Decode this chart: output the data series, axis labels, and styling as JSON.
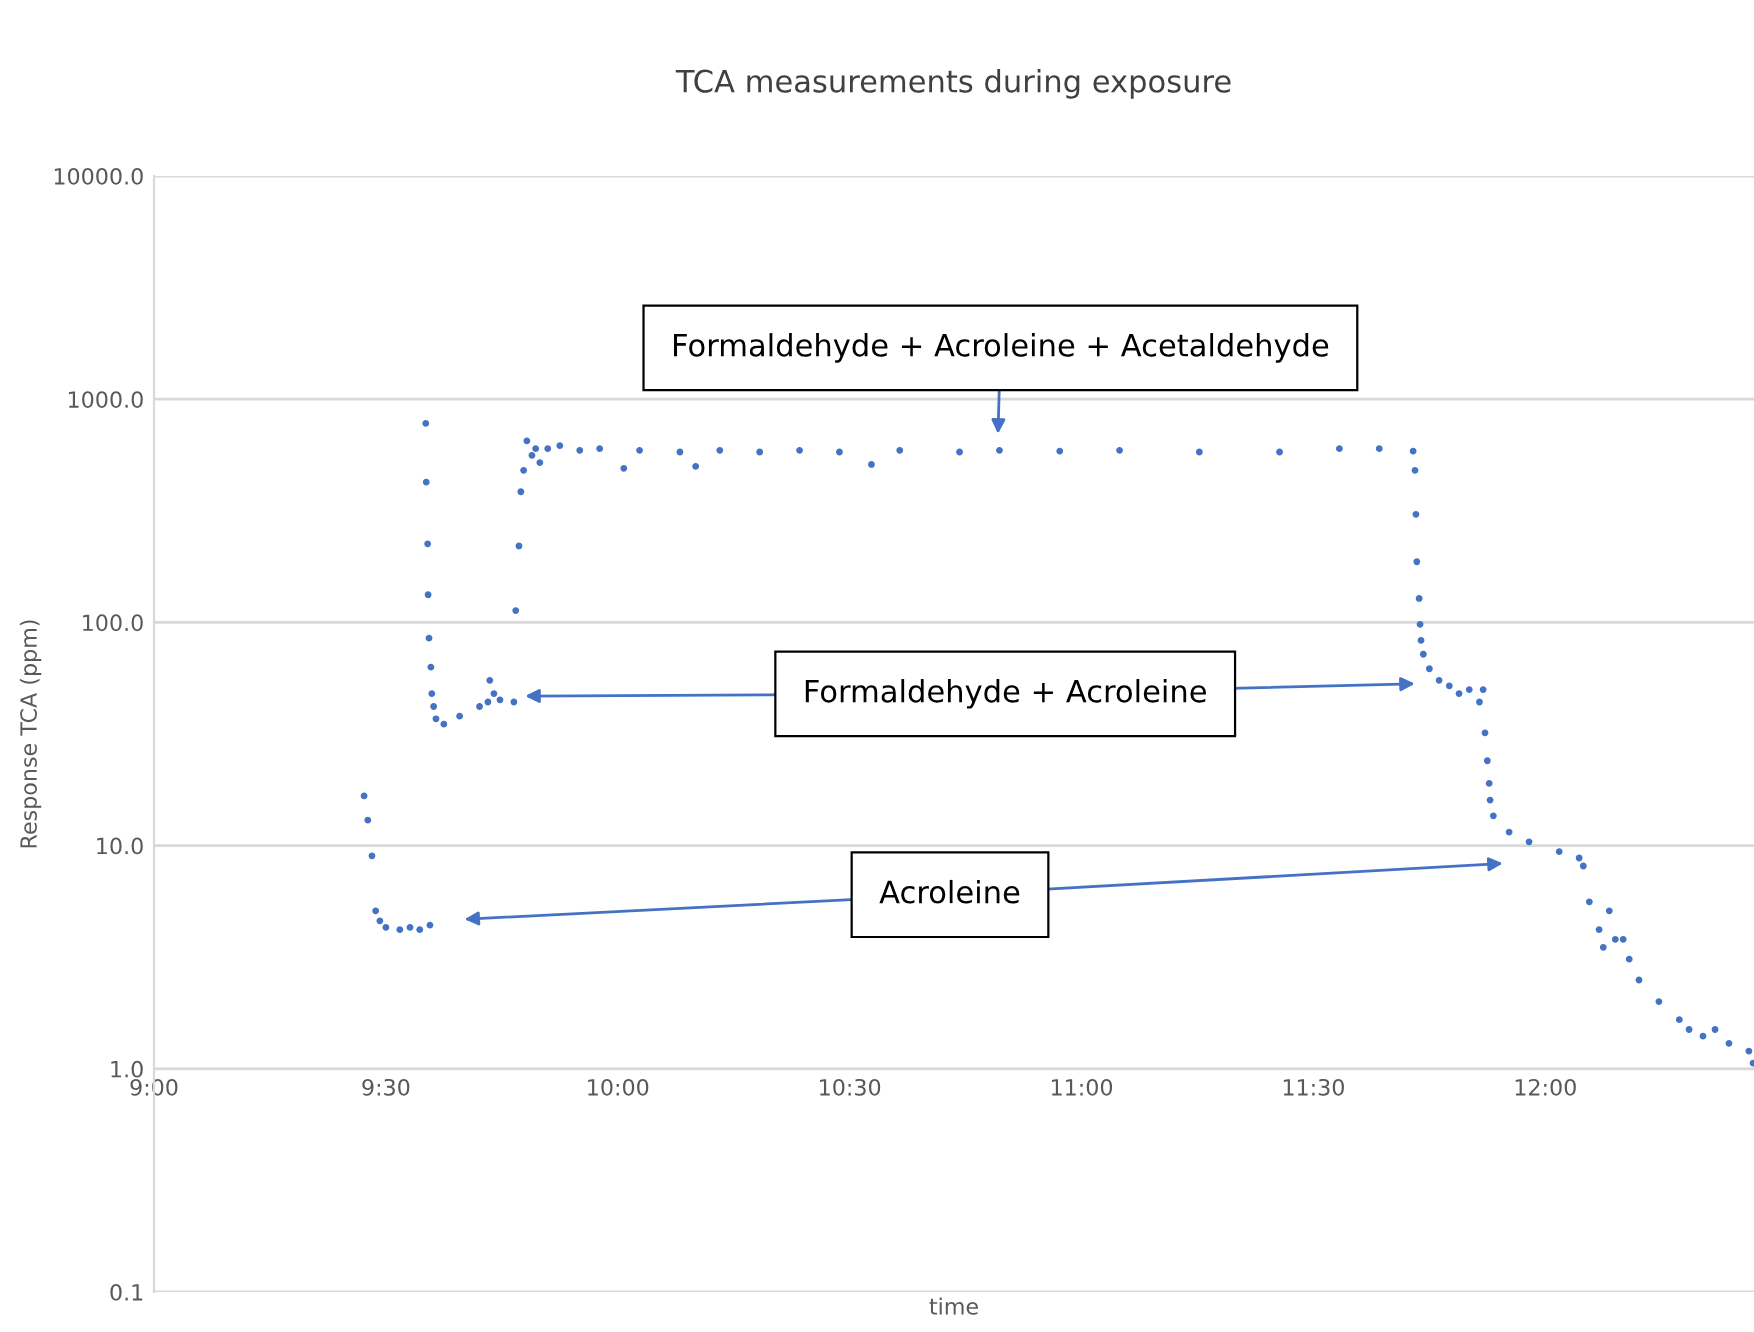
{
  "chart_data": {
    "type": "scatter",
    "title": "TCA measurements during exposure",
    "xlabel": "time",
    "ylabel": "Response TCA (ppm)",
    "log": "y",
    "grid": "y",
    "marker": "circle",
    "xlim": [
      9,
      12.45
    ],
    "xticks": [
      {
        "value": 9,
        "label": "9:00"
      },
      {
        "value": 9.5,
        "label": "9:30"
      },
      {
        "value": 10,
        "label": "10:00"
      },
      {
        "value": 10.5,
        "label": "10:30"
      },
      {
        "value": 11,
        "label": "11:00"
      },
      {
        "value": 11.5,
        "label": "11:30"
      },
      {
        "value": 12,
        "label": "12:00"
      }
    ],
    "ylim": [
      0.1,
      10000
    ],
    "yticks": [
      {
        "value": 0.1,
        "label": "0.1"
      },
      {
        "value": 1,
        "label": "1.0"
      },
      {
        "value": 10,
        "label": "10.0"
      },
      {
        "value": 100,
        "label": "100.0"
      },
      {
        "value": 1000,
        "label": "1000.0"
      },
      {
        "value": 10000,
        "label": "10000.0"
      }
    ],
    "series": [
      {
        "color": "#4472c4",
        "x": [
          9.453,
          9.461,
          9.47,
          9.478,
          9.487,
          9.5,
          9.53,
          9.552,
          9.573,
          9.595,
          9.586,
          9.587,
          9.59,
          9.591,
          9.593,
          9.597,
          9.599,
          9.603,
          9.608,
          9.625,
          9.659,
          9.702,
          9.72,
          9.724,
          9.733,
          9.746,
          9.776,
          9.78,
          9.787,
          9.791,
          9.797,
          9.804,
          9.815,
          9.823,
          9.832,
          9.849,
          9.875,
          9.918,
          9.961,
          10.013,
          10.047,
          10.134,
          10.168,
          10.22,
          10.306,
          10.392,
          10.478,
          10.547,
          10.608,
          10.737,
          10.823,
          10.953,
          11.082,
          11.254,
          11.427,
          11.556,
          11.642,
          11.715,
          11.719,
          11.721,
          11.723,
          11.728,
          11.73,
          11.732,
          11.737,
          11.75,
          11.771,
          11.793,
          11.814,
          11.836,
          11.858,
          11.866,
          11.87,
          11.875,
          11.879,
          11.881,
          11.888,
          11.922,
          11.965,
          12.03,
          12.073,
          12.082,
          12.095,
          12.116,
          12.125,
          12.138,
          12.151,
          12.168,
          12.181,
          12.202,
          12.245,
          12.289,
          12.31,
          12.34,
          12.366,
          12.396,
          12.439,
          12.448
        ],
        "values": [
          16.7,
          13,
          9,
          5.1,
          4.6,
          4.3,
          4.2,
          4.3,
          4.2,
          4.4,
          780,
          425,
          225,
          133,
          85,
          63,
          48,
          42,
          37,
          35,
          38,
          42,
          44,
          55,
          48,
          45,
          44,
          113,
          220,
          385,
          480,
          650,
          560,
          600,
          520,
          600,
          620,
          590,
          600,
          490,
          590,
          580,
          500,
          590,
          580,
          590,
          580,
          510,
          590,
          580,
          590,
          585,
          590,
          580,
          580,
          600,
          600,
          585,
          480,
          305,
          187,
          128,
          98,
          83,
          72,
          62,
          55,
          52,
          48,
          50,
          44,
          50,
          32,
          24,
          19,
          16,
          13.6,
          11.5,
          10.4,
          9.4,
          8.8,
          8.1,
          5.6,
          4.2,
          3.5,
          5.1,
          3.8,
          3.8,
          3.1,
          2.5,
          2.0,
          1.66,
          1.5,
          1.4,
          1.5,
          1.3,
          1.2,
          1.06
        ]
      }
    ],
    "annotations": [
      "Formaldehyde + Acroleine + Acetaldehyde",
      "Formaldehyde + Acroleine",
      "Acroleine"
    ]
  }
}
